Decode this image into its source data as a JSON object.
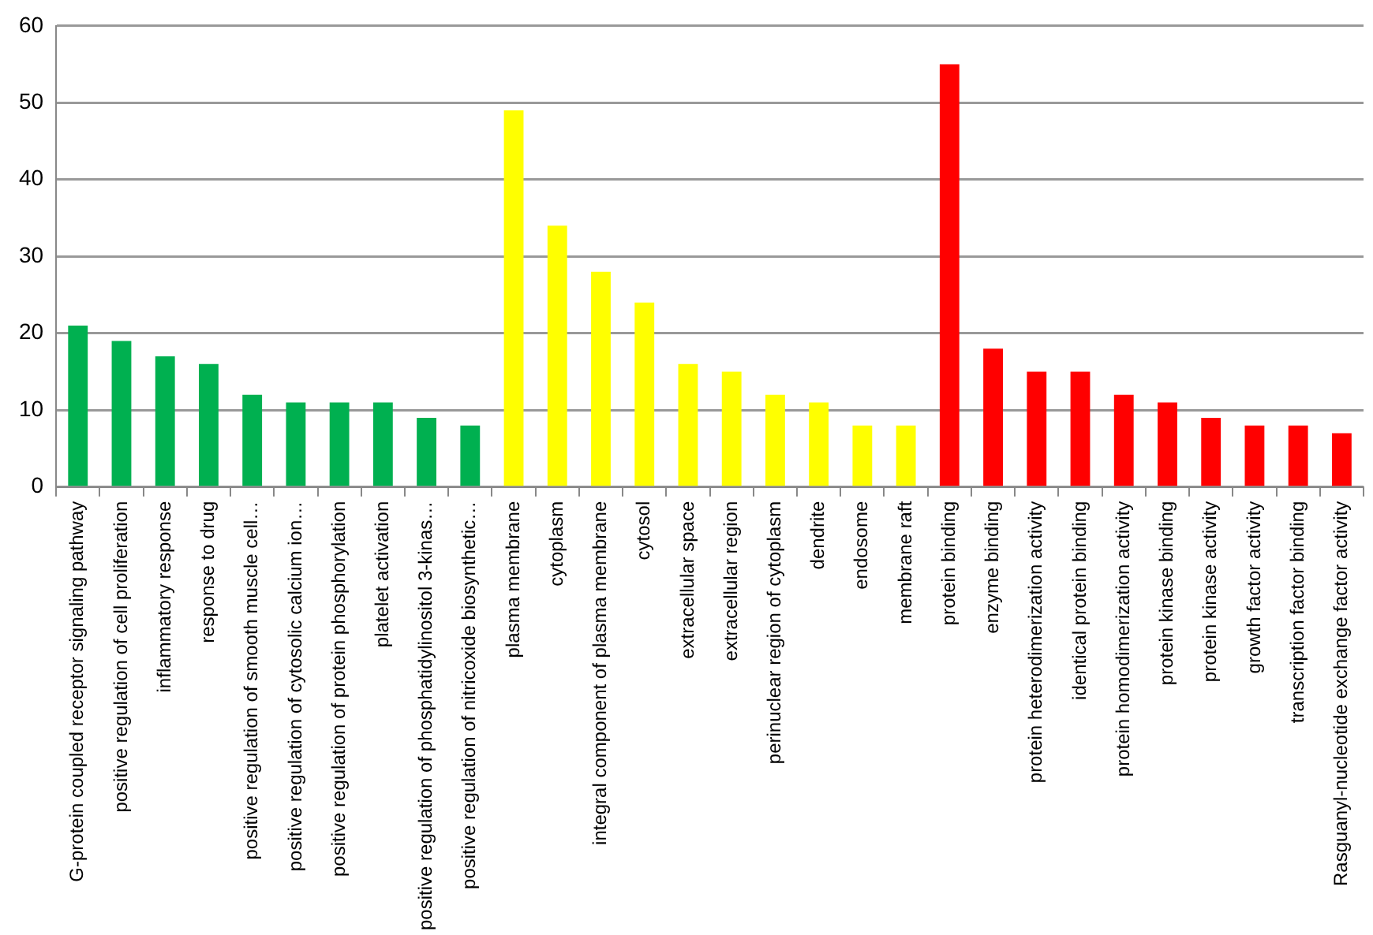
{
  "chart_data": {
    "type": "bar",
    "categories": [
      "G-protein coupled receptor signaling pathway",
      "positive regulation of cell proliferation",
      "inflammatory response",
      "response to drug",
      "positive regulation of smooth muscle cell…",
      "positive regulation of cytosolic calcium ion…",
      "positive regulation of protein phosphorylation",
      "platelet activation",
      "positive regulation of phosphatidylinositol 3-kinas…",
      "positive regulation of nitricoxide biosynthetic…",
      "plasma membrane",
      "cytoplasm",
      "integral component of plasma membrane",
      "cytosol",
      "extracellular space",
      "extracellular region",
      "perinuclear region of cytoplasm",
      "dendrite",
      "endosome",
      "membrane raft",
      "protein binding",
      "enzyme binding",
      "protein heterodimerization activity",
      "identical protein binding",
      "protein homodimerization activity",
      "protein kinase binding",
      "protein kinase activity",
      "growth factor activity",
      "transcription factor binding",
      "Rasguanyl-nucleotide exchange factor activity"
    ],
    "values": [
      21,
      19,
      17,
      16,
      12,
      11,
      11,
      11,
      9,
      8,
      49,
      34,
      28,
      24,
      16,
      15,
      12,
      11,
      8,
      8,
      55,
      18,
      15,
      15,
      12,
      11,
      9,
      8,
      8,
      7
    ],
    "colors": [
      "#00b050",
      "#00b050",
      "#00b050",
      "#00b050",
      "#00b050",
      "#00b050",
      "#00b050",
      "#00b050",
      "#00b050",
      "#00b050",
      "#ffff00",
      "#ffff00",
      "#ffff00",
      "#ffff00",
      "#ffff00",
      "#ffff00",
      "#ffff00",
      "#ffff00",
      "#ffff00",
      "#ffff00",
      "#ff0000",
      "#ff0000",
      "#ff0000",
      "#ff0000",
      "#ff0000",
      "#ff0000",
      "#ff0000",
      "#ff0000",
      "#ff0000",
      "#ff0000"
    ],
    "ylim": [
      0,
      60
    ],
    "yticks": [
      0,
      10,
      20,
      30,
      40,
      50,
      60
    ],
    "grid": "y",
    "legend": false
  }
}
